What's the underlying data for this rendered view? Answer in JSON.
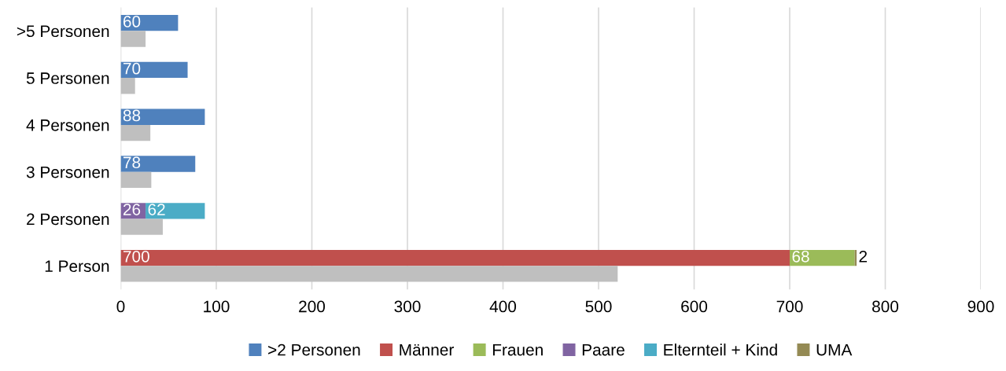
{
  "chart_data": {
    "type": "bar",
    "orientation": "horizontal",
    "categories": [
      ">5 Personen",
      "5 Personen",
      "4 Personen",
      "3 Personen",
      "2 Personen",
      "1 Person"
    ],
    "series": [
      {
        "name": ">2 Personen",
        "color": "#4f81bd",
        "values": [
          60,
          70,
          88,
          78,
          null,
          null
        ],
        "base": [
          0,
          0,
          0,
          0,
          null,
          null
        ],
        "value_labels": [
          "60",
          "70",
          "88",
          "78",
          null,
          null
        ]
      },
      {
        "name": "Männer",
        "color": "#c0504d",
        "values": [
          null,
          null,
          null,
          null,
          null,
          700
        ],
        "base": [
          null,
          null,
          null,
          null,
          null,
          0
        ],
        "value_labels": [
          null,
          null,
          null,
          null,
          null,
          "700"
        ]
      },
      {
        "name": "Frauen",
        "color": "#9bbb59",
        "values": [
          null,
          null,
          null,
          null,
          null,
          68
        ],
        "base": [
          null,
          null,
          null,
          null,
          null,
          700
        ],
        "value_labels": [
          null,
          null,
          null,
          null,
          null,
          "68"
        ]
      },
      {
        "name": "Paare",
        "color": "#8064a2",
        "values": [
          null,
          null,
          null,
          null,
          26,
          null
        ],
        "base": [
          null,
          null,
          null,
          null,
          0,
          null
        ],
        "value_labels": [
          null,
          null,
          null,
          null,
          "26",
          null
        ]
      },
      {
        "name": "Elternteil + Kind",
        "color": "#4bacc6",
        "values": [
          null,
          null,
          null,
          null,
          62,
          null
        ],
        "base": [
          null,
          null,
          null,
          null,
          26,
          null
        ],
        "value_labels": [
          null,
          null,
          null,
          null,
          "62",
          null
        ]
      },
      {
        "name": "UMA",
        "color": "#948a54",
        "values": [
          null,
          null,
          null,
          null,
          null,
          2
        ],
        "base": [
          null,
          null,
          null,
          null,
          null,
          768
        ],
        "value_labels": [
          null,
          null,
          null,
          null,
          null,
          "2"
        ]
      },
      {
        "color": "#bfbfbf",
        "values": [
          26,
          15,
          31,
          32,
          44,
          520
        ]
      }
    ],
    "xlim": [
      0,
      900
    ],
    "xticks": [
      0,
      100,
      200,
      300,
      400,
      500,
      600,
      700,
      800,
      900
    ],
    "grid": "x",
    "legend": "bottom"
  }
}
